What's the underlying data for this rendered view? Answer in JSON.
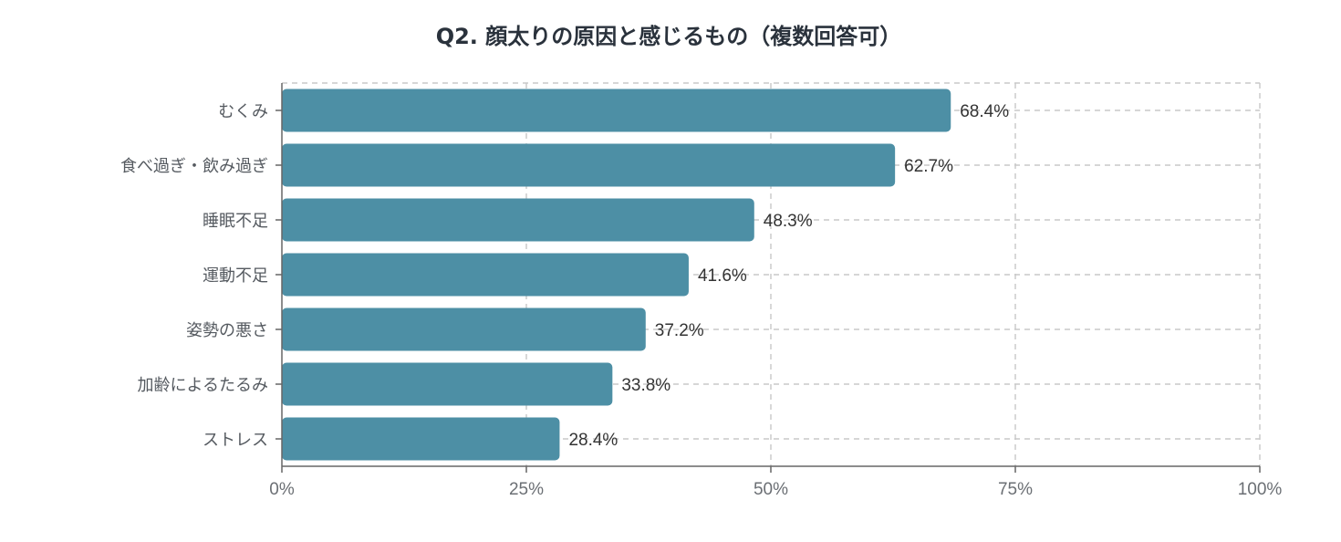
{
  "chart_data": {
    "type": "bar",
    "orientation": "horizontal",
    "title": "Q2. 顔太りの原因と感じるもの（複数回答可）",
    "categories": [
      "むくみ",
      "食べ過ぎ・飲み過ぎ",
      "睡眠不足",
      "運動不足",
      "姿勢の悪さ",
      "加齢によるたるみ",
      "ストレス"
    ],
    "values": [
      68.4,
      62.7,
      48.3,
      41.6,
      37.2,
      33.8,
      28.4
    ],
    "value_labels": [
      "68.4%",
      "62.7%",
      "48.3%",
      "41.6%",
      "37.2%",
      "33.8%",
      "28.4%"
    ],
    "xlim": [
      0,
      100
    ],
    "x_ticks": [
      0,
      25,
      50,
      75,
      100
    ],
    "x_tick_labels": [
      "0%",
      "25%",
      "50%",
      "75%",
      "100%"
    ],
    "xlabel": "",
    "ylabel": "",
    "grid": true,
    "legend": false,
    "bar_color": "#4d8fa5"
  }
}
